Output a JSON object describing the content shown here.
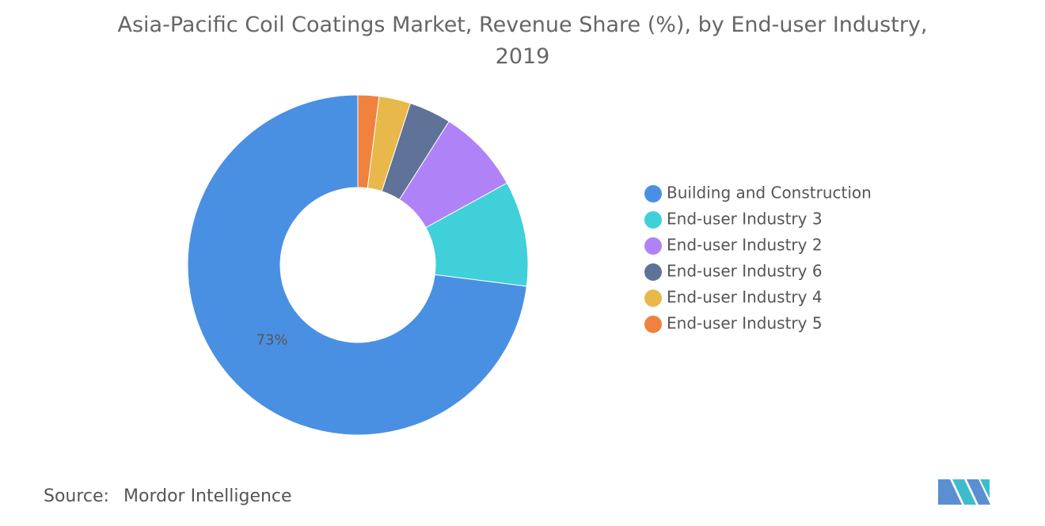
{
  "chart_data": {
    "type": "donut",
    "title": "Asia-Pacific Coil Coatings Market, Revenue Share (%), by End-user Industry, 2019",
    "series": [
      {
        "name": "Building and Construction",
        "color": "#4a90e2",
        "values": [
          73
        ]
      },
      {
        "name": "End-user Industry 3",
        "color": "#3fd0d9",
        "values": [
          10
        ]
      },
      {
        "name": "End-user Industry 2",
        "color": "#b082f7",
        "values": [
          8
        ]
      },
      {
        "name": "End-user Industry 6",
        "color": "#5e7397",
        "values": [
          4
        ]
      },
      {
        "name": "End-user Industry 4",
        "color": "#e8b84a",
        "values": [
          3
        ]
      },
      {
        "name": "End-user Industry 5",
        "color": "#f0813e",
        "values": [
          2
        ]
      }
    ],
    "value_labels": [
      "73%",
      null,
      null,
      null,
      null,
      null
    ],
    "legend": "right"
  },
  "source": {
    "label": "Source:",
    "text": "Mordor Intelligence"
  }
}
